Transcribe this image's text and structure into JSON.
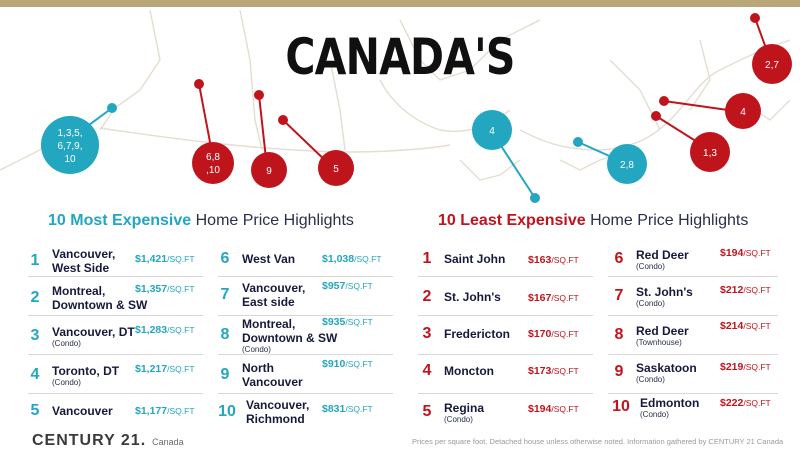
{
  "title": "CANADA'S",
  "colors": {
    "blue": "#23a6c0",
    "red": "#c0141d",
    "navy": "#16193a",
    "gold": "#b9a77a"
  },
  "map_markers": {
    "blue": [
      {
        "id": "vancouver-cluster",
        "label": [
          "1,3,5,",
          "6,7,9,",
          "10"
        ]
      },
      {
        "id": "toronto",
        "label": [
          "4"
        ]
      },
      {
        "id": "montreal",
        "label": [
          "2,8"
        ]
      }
    ],
    "red": [
      {
        "id": "prairie-cluster",
        "label": [
          "6,8",
          ",10"
        ]
      },
      {
        "id": "saskatoon",
        "label": [
          "9"
        ]
      },
      {
        "id": "regina",
        "label": [
          "5"
        ]
      },
      {
        "id": "fredericton",
        "label": [
          "1,3"
        ]
      },
      {
        "id": "moncton",
        "label": [
          "4"
        ]
      },
      {
        "id": "st-johns",
        "label": [
          "2,7"
        ]
      }
    ]
  },
  "most_expensive": {
    "title_highlight": "10 Most Expensive",
    "title_rest": " Home Price Highlights",
    "items": [
      {
        "num": "1",
        "name": "Vancouver,",
        "name2": "West Side",
        "sub": "",
        "price": "$1,421",
        "unit": "/SQ.FT"
      },
      {
        "num": "2",
        "name": "Montreal,",
        "name2": "Downtown & SW",
        "sub": "",
        "price": "$1,357",
        "unit": "/SQ.FT"
      },
      {
        "num": "3",
        "name": "Vancouver, DT",
        "name2": "",
        "sub": "(Condo)",
        "price": "$1,283",
        "unit": "/SQ.FT"
      },
      {
        "num": "4",
        "name": "Toronto, DT",
        "name2": "",
        "sub": "(Condo)",
        "price": "$1,217",
        "unit": "/SQ.FT"
      },
      {
        "num": "5",
        "name": "Vancouver",
        "name2": "",
        "sub": "",
        "price": "$1,177",
        "unit": "/SQ.FT"
      },
      {
        "num": "6",
        "name": "West Van",
        "name2": "",
        "sub": "",
        "price": "$1,038",
        "unit": "/SQ.FT"
      },
      {
        "num": "7",
        "name": "Vancouver,",
        "name2": "East side",
        "sub": "",
        "price": "$957",
        "unit": "/SQ.FT"
      },
      {
        "num": "8",
        "name": "Montreal,",
        "name2": "Downtown & SW",
        "sub": "(Condo)",
        "price": "$935",
        "unit": "/SQ.FT"
      },
      {
        "num": "9",
        "name": "North",
        "name2": "Vancouver",
        "sub": "",
        "price": "$910",
        "unit": "/SQ.FT"
      },
      {
        "num": "10",
        "name": "Vancouver,",
        "name2": "Richmond",
        "sub": "",
        "price": "$831",
        "unit": "/SQ.FT"
      }
    ]
  },
  "least_expensive": {
    "title_highlight": "10 Least Expensive",
    "title_rest": " Home Price Highlights",
    "items": [
      {
        "num": "1",
        "name": "Saint John",
        "sub": "",
        "price": "$163",
        "unit": "/SQ.FT"
      },
      {
        "num": "2",
        "name": "St. John's",
        "sub": "",
        "price": "$167",
        "unit": "/SQ.FT"
      },
      {
        "num": "3",
        "name": "Fredericton",
        "sub": "",
        "price": "$170",
        "unit": "/SQ.FT"
      },
      {
        "num": "4",
        "name": "Moncton",
        "sub": "",
        "price": "$173",
        "unit": "/SQ.FT"
      },
      {
        "num": "5",
        "name": "Regina",
        "sub": "(Condo)",
        "price": "$194",
        "unit": "/SQ.FT"
      },
      {
        "num": "6",
        "name": "Red Deer",
        "sub": "(Condo)",
        "price": "$194",
        "unit": "/SQ.FT"
      },
      {
        "num": "7",
        "name": "St. John's",
        "sub": "(Condo)",
        "price": "$212",
        "unit": "/SQ.FT"
      },
      {
        "num": "8",
        "name": "Red Deer",
        "sub": "(Townhouse)",
        "price": "$214",
        "unit": "/SQ.FT"
      },
      {
        "num": "9",
        "name": "Saskatoon",
        "sub": "(Condo)",
        "price": "$219",
        "unit": "/SQ.FT"
      },
      {
        "num": "10",
        "name": "Edmonton",
        "sub": "(Condo)",
        "price": "$222",
        "unit": "/SQ.FT"
      }
    ]
  },
  "footer": {
    "brand": "CENTURY 21.",
    "brand_sub": "Canada",
    "note": "Prices per square foot. Detached house unless otherwise noted. Information gathered by CENTURY 21 Canada"
  }
}
